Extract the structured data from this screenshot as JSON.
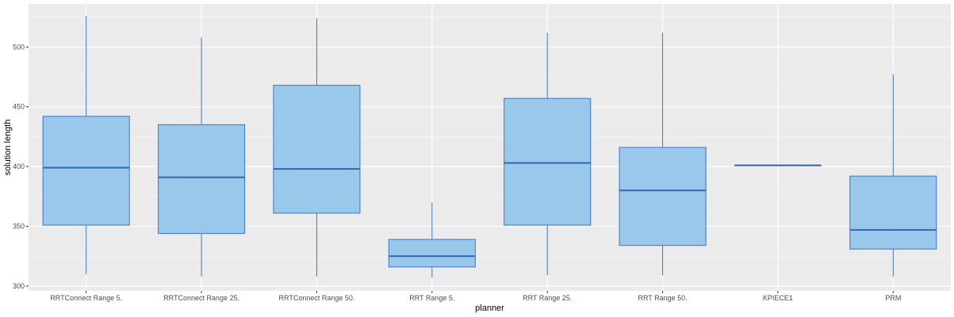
{
  "chart_data": {
    "type": "boxplot",
    "xlabel": "planner",
    "ylabel": "solution length",
    "ylim": [
      296,
      536
    ],
    "y_ticks": [
      300,
      350,
      400,
      450,
      500
    ],
    "grid": true,
    "colors": {
      "panel_bg": "#EBEBEB",
      "grid_major": "#FFFFFF",
      "box_fill": "#9AC8EB",
      "box_stroke": "#3A75C4",
      "median": "#2B68B5"
    },
    "categories": [
      "RRTConnect Range 5.",
      "RRTConnect Range 25.",
      "RRTConnect Range 50.",
      "RRT Range 5.",
      "RRT Range 25.",
      "RRT Range 50.",
      "KPIECE1",
      "PRM"
    ],
    "boxes": [
      {
        "min": 310,
        "q1": 351,
        "median": 399,
        "q3": 442,
        "max": 526
      },
      {
        "min": 308,
        "q1": 344,
        "median": 391,
        "q3": 435,
        "max": 508
      },
      {
        "min": 308,
        "q1": 361,
        "median": 398,
        "q3": 468,
        "max": 524
      },
      {
        "min": 307,
        "q1": 316,
        "median": 325,
        "q3": 339,
        "max": 370
      },
      {
        "min": 309,
        "q1": 351,
        "median": 403,
        "q3": 457,
        "max": 512
      },
      {
        "min": 309,
        "q1": 334,
        "median": 380,
        "q3": 416,
        "max": 512
      },
      {
        "min": 401,
        "q1": 401,
        "median": 401,
        "q3": 401,
        "max": 401
      },
      {
        "min": 308,
        "q1": 331,
        "median": 347,
        "q3": 392,
        "max": 477
      }
    ]
  }
}
